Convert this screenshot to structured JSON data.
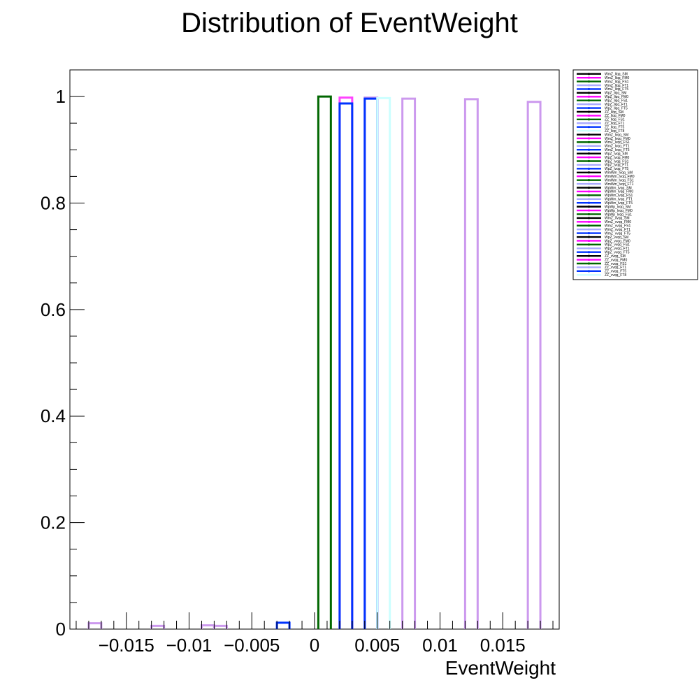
{
  "chart_data": {
    "type": "bar",
    "title": "Distribution of EventWeight",
    "xlabel": "EventWeight",
    "ylabel": "",
    "xlim": [
      -0.0195,
      0.0195
    ],
    "ylim": [
      0,
      1.05
    ],
    "x_ticks": [
      -0.015,
      -0.01,
      -0.005,
      0,
      0.005,
      0.01,
      0.015
    ],
    "x_tick_labels": [
      "−0.015",
      "−0.01",
      "−0.005",
      "0",
      "0.005",
      "0.01",
      "0.015"
    ],
    "y_ticks": [
      0,
      0.2,
      0.4,
      0.6,
      0.8,
      1
    ],
    "y_tick_labels": [
      "0",
      "0.2",
      "0.4",
      "0.6",
      "0.8",
      "1"
    ],
    "grid": false,
    "legend_position": "top-right",
    "series": [
      {
        "name": "WmZ_llqq_FT5",
        "color": "#cc99ee",
        "x": [
          -0.0175,
          -0.0125,
          -0.0075,
          0.0075,
          0.0125,
          0.0175
        ],
        "values": [
          0.011,
          0.006,
          0.006,
          0.996,
          0.995,
          0.99
        ]
      },
      {
        "name": "WpZ_llqq_FT0",
        "color": "#cc99ee",
        "x": [
          -0.0085,
          0.0045
        ],
        "values": [
          0.007,
          0.998
        ]
      },
      {
        "name": "WmZ_llqq_FS1",
        "color": "#006600",
        "x": [
          0.0008
        ],
        "values": [
          1.0
        ]
      },
      {
        "name": "WpZ_llqq_FM0",
        "color": "#ff44ff",
        "x": [
          0.0025
        ],
        "values": [
          0.998
        ]
      },
      {
        "name": "WmZ_llqq_FT1",
        "color": "#0033ff",
        "x": [
          -0.0025,
          0.0025,
          0.0045
        ],
        "values": [
          0.012,
          0.987,
          0.996
        ]
      },
      {
        "name": "ZZ_llqq_FT1",
        "color": "#ccffff",
        "x": [
          0.0055
        ],
        "values": [
          0.997
        ]
      }
    ],
    "legend_entries": [
      {
        "name": "WmZ_llqq_SM",
        "color": "#000000"
      },
      {
        "name": "WmZ_llqq_FM0",
        "color": "#ff00ff"
      },
      {
        "name": "WmZ_llqq_FS1",
        "color": "#006600"
      },
      {
        "name": "WmZ_llqq_FT1",
        "color": "#aaaaff"
      },
      {
        "name": "WmZ_llqq_FT5",
        "color": "#0033ff"
      },
      {
        "name": "WpZ_llqq_SM",
        "color": "#000000"
      },
      {
        "name": "WpZ_llqq_FM0",
        "color": "#ff00ff"
      },
      {
        "name": "WpZ_llqq_FS1",
        "color": "#006600"
      },
      {
        "name": "WpZ_llqq_FT1",
        "color": "#aaaaff"
      },
      {
        "name": "WpZ_llqq_FT5",
        "color": "#0033ff"
      },
      {
        "name": "ZZ_llqq_SM",
        "color": "#000000"
      },
      {
        "name": "ZZ_llqq_FM0",
        "color": "#ff00ff"
      },
      {
        "name": "ZZ_llqq_FS1",
        "color": "#006600"
      },
      {
        "name": "ZZ_llqq_FT1",
        "color": "#aaaaff"
      },
      {
        "name": "ZZ_llqq_FT5",
        "color": "#0033ff"
      },
      {
        "name": "ZZ_llqq_FT8",
        "color": "#ccffff"
      },
      {
        "name": "WmZ_lvqq_SM",
        "color": "#000000"
      },
      {
        "name": "WmZ_lvqq_FM0",
        "color": "#ff00ff"
      },
      {
        "name": "WmZ_lvqq_FS1",
        "color": "#006600"
      },
      {
        "name": "WmZ_lvqq_FT1",
        "color": "#aaaaff"
      },
      {
        "name": "WmZ_lvqq_FT5",
        "color": "#0033ff"
      },
      {
        "name": "WpZ_lvqq_SM",
        "color": "#000000"
      },
      {
        "name": "WpZ_lvqq_FM0",
        "color": "#ff00ff"
      },
      {
        "name": "WpZ_lvqq_FS1",
        "color": "#006600"
      },
      {
        "name": "WpZ_lvqq_FT1",
        "color": "#aaaaff"
      },
      {
        "name": "WpZ_lvqq_FT5",
        "color": "#0033ff"
      },
      {
        "name": "WmWm_lvqq_SM",
        "color": "#000000"
      },
      {
        "name": "WmWm_lvqq_FM0",
        "color": "#ff00ff"
      },
      {
        "name": "WmWm_lvqq_FS1",
        "color": "#006600"
      },
      {
        "name": "WmWm_lvqq_FT1",
        "color": "#aaaaff"
      },
      {
        "name": "WpWm_lvqq_SM",
        "color": "#000000"
      },
      {
        "name": "WpWm_lvqq_FM0",
        "color": "#ff00ff"
      },
      {
        "name": "WpWm_lvqq_FS1",
        "color": "#006600"
      },
      {
        "name": "WpWm_lvqq_FT1",
        "color": "#aaaaff"
      },
      {
        "name": "WpWm_lvqq_FT5",
        "color": "#0033ff"
      },
      {
        "name": "WpWp_lvqq_SM",
        "color": "#000000"
      },
      {
        "name": "WpWp_lvqq_FM0",
        "color": "#ff00ff"
      },
      {
        "name": "WpWp_lvqq_FS1",
        "color": "#006600"
      },
      {
        "name": "WmZ_vvqq_SM",
        "color": "#000000"
      },
      {
        "name": "WmZ_vvqq_FM0",
        "color": "#ff00ff"
      },
      {
        "name": "WmZ_vvqq_FS1",
        "color": "#006600"
      },
      {
        "name": "WmZ_vvqq_FT1",
        "color": "#aaaaff"
      },
      {
        "name": "WmZ_vvqq_FT5",
        "color": "#0033ff"
      },
      {
        "name": "WpZ_vvqq_SM",
        "color": "#000000"
      },
      {
        "name": "WpZ_vvqq_FM0",
        "color": "#ff00ff"
      },
      {
        "name": "WpZ_vvqq_FS1",
        "color": "#006600"
      },
      {
        "name": "WpZ_vvqq_FT1",
        "color": "#aaaaff"
      },
      {
        "name": "WpZ_vvqq_FT5",
        "color": "#0033ff"
      },
      {
        "name": "ZZ_vvqq_SM",
        "color": "#000000"
      },
      {
        "name": "ZZ_vvqq_FM0",
        "color": "#ff00ff"
      },
      {
        "name": "ZZ_vvqq_FS1",
        "color": "#006600"
      },
      {
        "name": "ZZ_vvqq_FT1",
        "color": "#aaaaff"
      },
      {
        "name": "ZZ_vvqq_FT5",
        "color": "#0033ff"
      },
      {
        "name": "ZZ_vvqq_FT8",
        "color": "#ccffff"
      }
    ]
  }
}
